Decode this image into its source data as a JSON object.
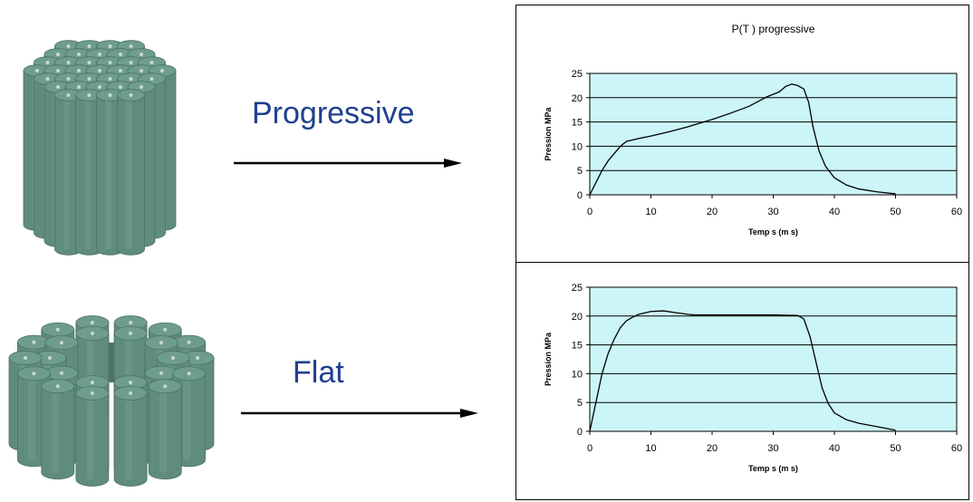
{
  "labels": {
    "top": "Progressive",
    "bottom": "Flat"
  },
  "colors": {
    "grain_fill": "#5f8c7c",
    "grain_dark": "#4b7466",
    "grain_top": "#6f9d8d",
    "hole": "#c8d8d2",
    "plot_bg": "#ccf5f7",
    "label_blue": "#1f3f8f"
  },
  "chart_data": [
    {
      "type": "line",
      "title": "P(T ) progressive",
      "xlabel": "Temp s (m s)",
      "ylabel": "Pression MPa",
      "xlim": [
        0,
        60
      ],
      "ylim": [
        0,
        25
      ],
      "xticks": [
        0,
        10,
        20,
        30,
        40,
        50,
        60
      ],
      "yticks": [
        0,
        5,
        10,
        15,
        20,
        25
      ],
      "grid": "horizontal",
      "series": [
        {
          "x": [
            0,
            1,
            2,
            3,
            4,
            5,
            6,
            8,
            10,
            13,
            16,
            20,
            23,
            26,
            29,
            31,
            32,
            33,
            34,
            35,
            35.8,
            36.5,
            37.5,
            38.5,
            40,
            42,
            44,
            47,
            50
          ],
          "y": [
            0,
            2.5,
            5,
            7,
            8.5,
            10,
            11,
            11.6,
            12.1,
            13,
            14,
            15.5,
            16.8,
            18.2,
            20.2,
            21.2,
            22.3,
            22.8,
            22.5,
            21.8,
            19,
            14,
            9,
            6,
            3.5,
            2,
            1.2,
            0.6,
            0.2
          ]
        }
      ]
    },
    {
      "type": "line",
      "title": "",
      "xlabel": "Temp s (m s)",
      "ylabel": "Pression MPa",
      "xlim": [
        0,
        60
      ],
      "ylim": [
        0,
        25
      ],
      "xticks": [
        0,
        10,
        20,
        30,
        40,
        50,
        60
      ],
      "yticks": [
        0,
        5,
        10,
        15,
        20,
        25
      ],
      "grid": "horizontal",
      "series": [
        {
          "x": [
            0,
            1,
            2,
            3,
            4,
            5,
            6,
            7,
            8,
            10,
            12,
            14,
            16,
            17,
            20,
            25,
            30,
            34,
            35,
            36,
            37,
            38,
            39,
            40,
            42,
            44,
            47,
            50
          ],
          "y": [
            0,
            5,
            10,
            13.5,
            16,
            18,
            19.2,
            19.8,
            20.3,
            20.8,
            20.9,
            20.6,
            20.3,
            20.2,
            20.2,
            20.2,
            20.2,
            20.1,
            19.5,
            16.5,
            12,
            7.5,
            4.8,
            3.2,
            2,
            1.4,
            0.8,
            0.2
          ]
        }
      ]
    }
  ]
}
